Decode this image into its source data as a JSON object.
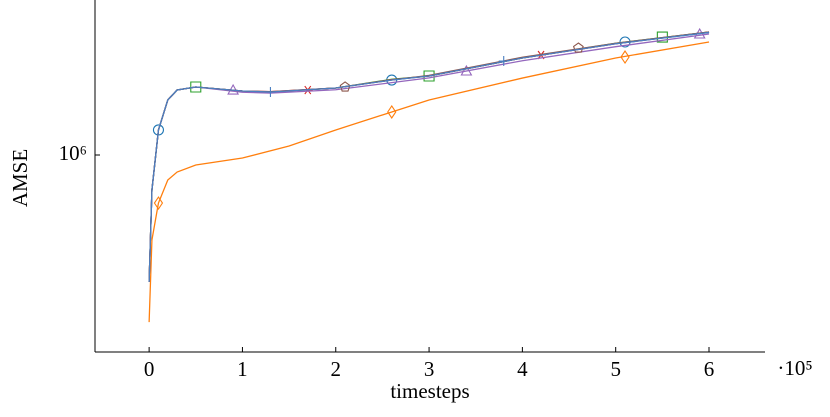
{
  "chart_data": {
    "type": "line",
    "x_label": "timesteps",
    "y_label": "AMSE",
    "x_multiplier": "·10⁵",
    "log_y": true,
    "grid": false,
    "xlim": [
      -0.58,
      6.6
    ],
    "xticks": [
      0,
      1,
      2,
      3,
      4,
      5,
      6
    ],
    "ylim": [
      103500,
      5957000
    ],
    "yticks": [
      {
        "value": 1000000,
        "label": "10⁶"
      }
    ],
    "series": [
      {
        "color": "#1f77b4",
        "marker": "o",
        "x": [
          0,
          0.03,
          0.1,
          0.2,
          0.3,
          0.5,
          1,
          1.3,
          2,
          2.6,
          3,
          4,
          5,
          6
        ],
        "values": [
          232000,
          668000,
          1334000,
          1884000,
          2113000,
          2188000,
          2089000,
          2065000,
          2163000,
          2371000,
          2483000,
          3055000,
          3600000,
          4100000
        ],
        "markers": {
          "x": [
            0.1,
            2.6,
            5.1
          ],
          "values": [
            1334000,
            2371000,
            3673000
          ]
        }
      },
      {
        "color": "#ff7f0e",
        "marker": "d",
        "x": [
          0,
          0.03,
          0.1,
          0.2,
          0.3,
          0.5,
          1,
          1.5,
          2,
          2.6,
          3,
          4,
          5,
          6
        ],
        "values": [
          146000,
          376000,
          575000,
          750000,
          822000,
          891000,
          966000,
          1109000,
          1334000,
          1641000,
          1884000,
          2425000,
          3055000,
          3673000
        ],
        "markers": {
          "x": [
            0.1,
            2.6,
            5.1
          ],
          "values": [
            575000,
            1641000,
            3090000
          ]
        }
      },
      {
        "color": "#2ca02c",
        "marker": "s",
        "x": [
          0,
          0.03,
          0.1,
          0.2,
          0.3,
          0.5,
          1,
          1.3,
          2,
          2.6,
          3,
          4,
          5,
          6
        ],
        "values": [
          232000,
          668000,
          1334000,
          1884000,
          2113000,
          2188000,
          2089000,
          2065000,
          2163000,
          2390000,
          2483000,
          3055000,
          3620000,
          4121000
        ],
        "markers": {
          "x": [
            0.5,
            3,
            5.5
          ],
          "values": [
            2188000,
            2483000,
            3890000
          ]
        }
      },
      {
        "color": "#d62728",
        "marker": "*",
        "x": [
          0,
          0.03,
          0.1,
          0.2,
          0.3,
          0.5,
          1,
          1.3,
          2,
          2.6,
          3,
          4,
          5,
          6
        ],
        "values": [
          232000,
          668000,
          1334000,
          1884000,
          2113000,
          2188000,
          2089000,
          2075000,
          2163000,
          2380000,
          2483000,
          3055000,
          3600000,
          4121000
        ],
        "markers": {
          "x": [
            1.7,
            4.2
          ],
          "values": [
            2113000,
            3162000
          ]
        }
      },
      {
        "color": "#9467bd",
        "marker": "^",
        "x": [
          0,
          0.03,
          0.1,
          0.2,
          0.3,
          0.5,
          1,
          1.3,
          2,
          2.6,
          3,
          4,
          5,
          6
        ],
        "values": [
          232000,
          668000,
          1334000,
          1884000,
          2113000,
          2188000,
          2060000,
          2040000,
          2120000,
          2300000,
          2430000,
          2960000,
          3480000,
          4027000
        ],
        "markers": {
          "x": [
            0.9,
            3.4,
            5.9
          ],
          "values": [
            2113000,
            2630000,
            4027000
          ]
        }
      },
      {
        "color": "#8c564b",
        "marker": "p",
        "x": [
          0,
          0.03,
          0.1,
          0.2,
          0.3,
          0.5,
          1,
          1.3,
          2,
          2.6,
          3,
          4,
          5,
          6
        ],
        "values": [
          232000,
          668000,
          1334000,
          1884000,
          2113000,
          2188000,
          2089000,
          2075000,
          2163000,
          2371000,
          2500000,
          3080000,
          3620000,
          4121000
        ],
        "markers": {
          "x": [
            2.1,
            4.6
          ],
          "values": [
            2188000,
            3428000
          ]
        }
      },
      {
        "color": "#4a7fc1",
        "marker": "+",
        "x": [
          0,
          0.03,
          0.1,
          0.2,
          0.3,
          0.5,
          1,
          1.3,
          2,
          2.6,
          3,
          4,
          5,
          6
        ],
        "values": [
          232000,
          668000,
          1334000,
          1884000,
          2113000,
          2188000,
          2089000,
          2065000,
          2163000,
          2371000,
          2483000,
          3055000,
          3600000,
          4100000
        ],
        "markers": {
          "x": [
            1.3,
            3.8
          ],
          "values": [
            2065000,
            2951000
          ]
        }
      }
    ]
  }
}
